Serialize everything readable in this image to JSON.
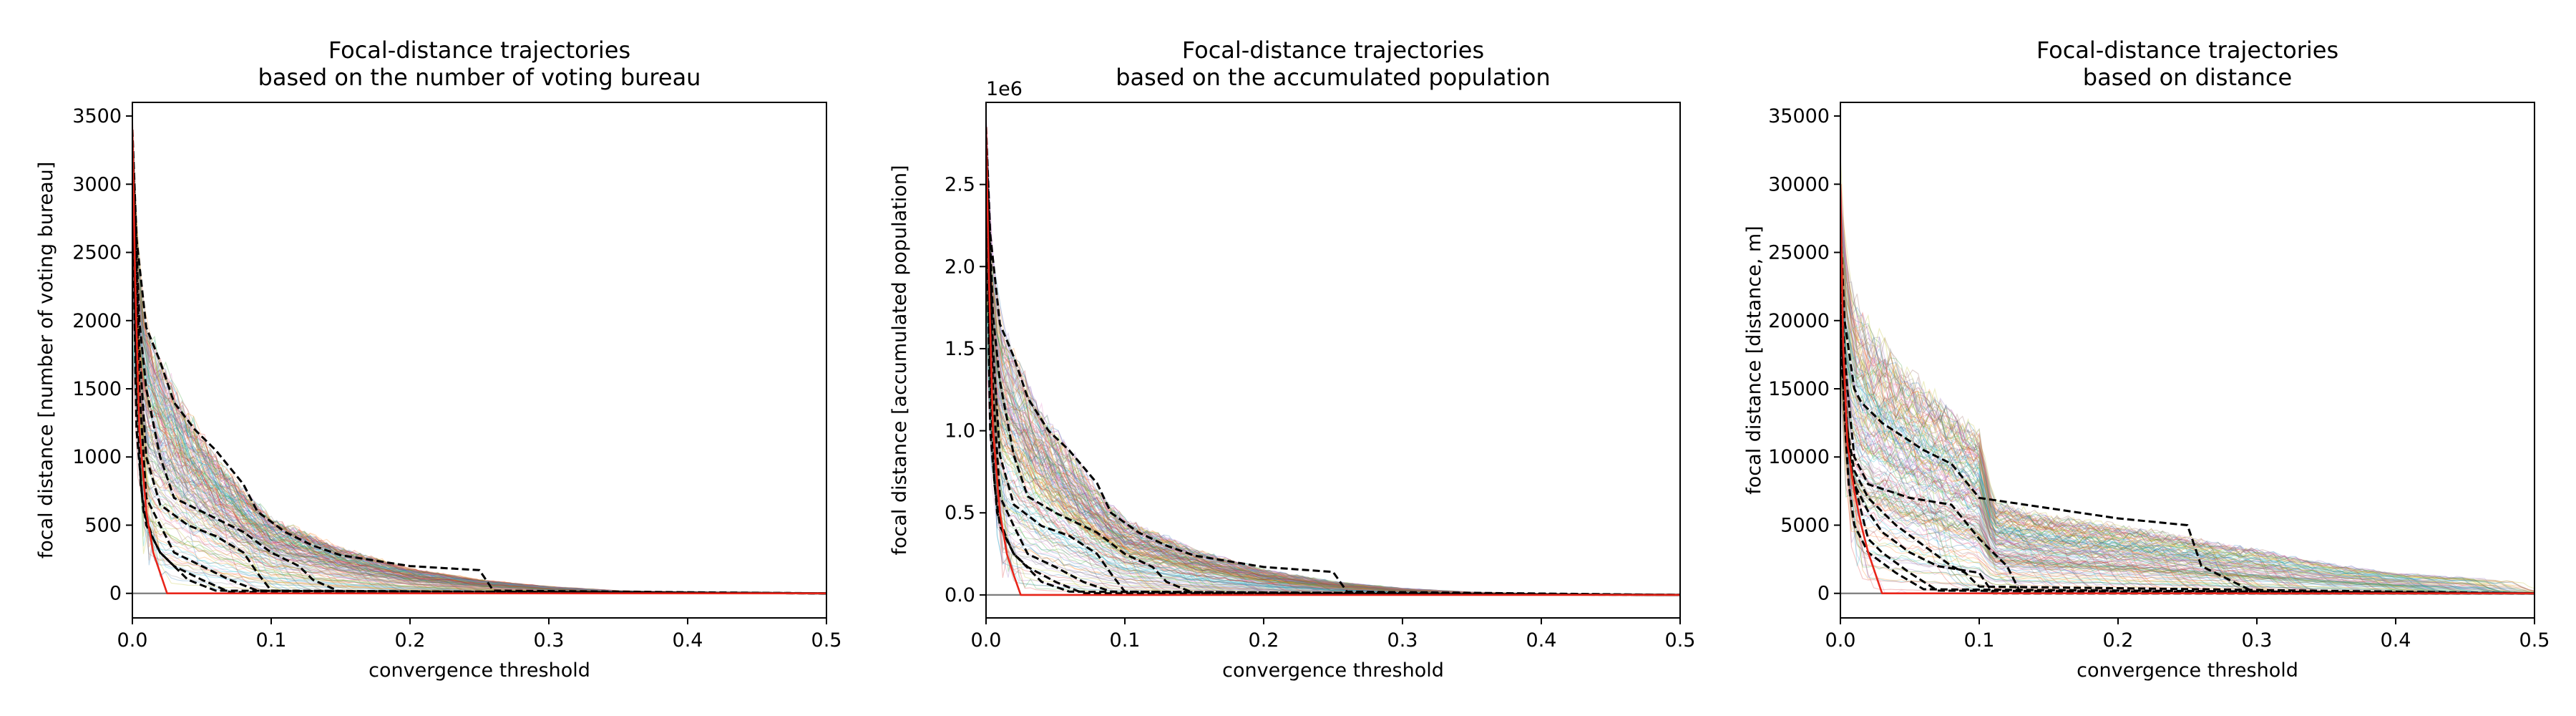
{
  "chart_data": [
    {
      "type": "line",
      "title": "Focal-distance trajectories\nbased on the number of voting bureau",
      "xlabel": "convergence threshold",
      "ylabel": "focal distance [number of voting bureau]",
      "xlim": [
        0,
        0.5
      ],
      "ylim": [
        -180,
        3600
      ],
      "xticks": [
        "0.0",
        "0.1",
        "0.2",
        "0.3",
        "0.4",
        "0.5"
      ],
      "yticks": [
        "0",
        "500",
        "1000",
        "1500",
        "2000",
        "2500",
        "3000",
        "3500"
      ],
      "offset_label": "",
      "grid": false,
      "background_trajectories": "many thin multicolored trajectories",
      "envelope_x": [
        0,
        0.005,
        0.01,
        0.02,
        0.04,
        0.06,
        0.08,
        0.1,
        0.15,
        0.2,
        0.25,
        0.3,
        0.35,
        0.4,
        0.5
      ],
      "envelope_y": [
        3400,
        2300,
        1950,
        1700,
        1300,
        1000,
        750,
        550,
        330,
        180,
        100,
        50,
        20,
        10,
        0
      ],
      "series": [
        {
          "style": "dashed",
          "color": "#000000",
          "x": [
            0,
            0.003,
            0.01,
            0.02,
            0.03,
            0.045,
            0.06,
            0.08,
            0.09,
            0.11,
            0.13,
            0.15,
            0.2,
            0.25,
            0.26,
            0.5
          ],
          "y": [
            3400,
            2600,
            1950,
            1700,
            1400,
            1200,
            1050,
            800,
            600,
            450,
            350,
            280,
            200,
            170,
            20,
            0
          ]
        },
        {
          "style": "dashed",
          "color": "#000000",
          "x": [
            0,
            0.005,
            0.01,
            0.02,
            0.03,
            0.05,
            0.07,
            0.08,
            0.1,
            0.12,
            0.13,
            0.15,
            0.5
          ],
          "y": [
            3300,
            2000,
            1500,
            1000,
            700,
            600,
            500,
            450,
            300,
            200,
            100,
            10,
            0
          ]
        },
        {
          "style": "dashed",
          "color": "#000000",
          "x": [
            0,
            0.005,
            0.01,
            0.02,
            0.04,
            0.06,
            0.08,
            0.09,
            0.1,
            0.5
          ],
          "y": [
            3200,
            1800,
            1000,
            650,
            500,
            420,
            300,
            150,
            20,
            0
          ]
        },
        {
          "style": "dashed",
          "color": "#000000",
          "x": [
            0,
            0.005,
            0.01,
            0.02,
            0.03,
            0.05,
            0.07,
            0.09,
            0.5
          ],
          "y": [
            3100,
            1500,
            700,
            500,
            300,
            200,
            100,
            20,
            0
          ]
        },
        {
          "style": "dashed",
          "color": "#000000",
          "x": [
            0,
            0.003,
            0.008,
            0.015,
            0.02,
            0.03,
            0.05,
            0.07,
            0.5
          ],
          "y": [
            3000,
            1200,
            600,
            400,
            300,
            200,
            100,
            10,
            0
          ]
        },
        {
          "style": "dashed",
          "color": "#000000",
          "x": [
            0,
            0.003,
            0.006,
            0.01,
            0.02,
            0.04,
            0.06,
            0.5
          ],
          "y": [
            3200,
            1600,
            800,
            500,
            300,
            100,
            20,
            0
          ]
        },
        {
          "style": "solid",
          "color": "#e8251a",
          "x": [
            0,
            0.002,
            0.005,
            0.01,
            0.015,
            0.02,
            0.025,
            0.5
          ],
          "y": [
            3400,
            2300,
            1200,
            600,
            300,
            150,
            0,
            0
          ]
        }
      ]
    },
    {
      "type": "line",
      "title": "Focal-distance trajectories\nbased on the accumulated population",
      "xlabel": "convergence threshold",
      "ylabel": "focal distance [accumulated population]",
      "xlim": [
        0,
        0.5
      ],
      "ylim": [
        -0.14,
        3.0
      ],
      "xticks": [
        "0.0",
        "0.1",
        "0.2",
        "0.3",
        "0.4",
        "0.5"
      ],
      "yticks": [
        "0.0",
        "0.5",
        "1.0",
        "1.5",
        "2.0",
        "2.5"
      ],
      "offset_label": "1e6",
      "grid": false,
      "background_trajectories": "many thin multicolored trajectories",
      "envelope_x": [
        0,
        0.005,
        0.01,
        0.02,
        0.04,
        0.06,
        0.08,
        0.1,
        0.15,
        0.2,
        0.25,
        0.3,
        0.35,
        0.4,
        0.5
      ],
      "envelope_y": [
        2.85,
        1.95,
        1.65,
        1.45,
        1.1,
        0.85,
        0.62,
        0.45,
        0.27,
        0.15,
        0.08,
        0.04,
        0.017,
        0.008,
        0
      ],
      "series": [
        {
          "style": "dashed",
          "color": "#000000",
          "x": [
            0,
            0.003,
            0.01,
            0.02,
            0.03,
            0.045,
            0.06,
            0.08,
            0.09,
            0.11,
            0.13,
            0.15,
            0.2,
            0.25,
            0.26,
            0.5
          ],
          "y": [
            2.85,
            2.2,
            1.65,
            1.45,
            1.2,
            1.0,
            0.88,
            0.68,
            0.5,
            0.38,
            0.3,
            0.24,
            0.17,
            0.14,
            0.02,
            0
          ]
        },
        {
          "style": "dashed",
          "color": "#000000",
          "x": [
            0,
            0.005,
            0.01,
            0.02,
            0.03,
            0.05,
            0.07,
            0.08,
            0.1,
            0.12,
            0.13,
            0.15,
            0.5
          ],
          "y": [
            2.8,
            1.7,
            1.3,
            0.85,
            0.6,
            0.5,
            0.42,
            0.38,
            0.25,
            0.17,
            0.08,
            0.01,
            0
          ]
        },
        {
          "style": "dashed",
          "color": "#000000",
          "x": [
            0,
            0.005,
            0.01,
            0.02,
            0.04,
            0.06,
            0.08,
            0.09,
            0.1,
            0.5
          ],
          "y": [
            2.7,
            1.5,
            0.85,
            0.55,
            0.42,
            0.36,
            0.25,
            0.13,
            0.02,
            0
          ]
        },
        {
          "style": "dashed",
          "color": "#000000",
          "x": [
            0,
            0.005,
            0.01,
            0.02,
            0.03,
            0.05,
            0.07,
            0.09,
            0.5
          ],
          "y": [
            2.6,
            1.25,
            0.6,
            0.42,
            0.25,
            0.17,
            0.08,
            0.02,
            0
          ]
        },
        {
          "style": "dashed",
          "color": "#000000",
          "x": [
            0,
            0.003,
            0.008,
            0.015,
            0.02,
            0.03,
            0.05,
            0.07,
            0.5
          ],
          "y": [
            2.55,
            1.0,
            0.5,
            0.34,
            0.25,
            0.17,
            0.08,
            0.01,
            0
          ]
        },
        {
          "style": "dashed",
          "color": "#000000",
          "x": [
            0,
            0.003,
            0.006,
            0.01,
            0.02,
            0.04,
            0.06,
            0.5
          ],
          "y": [
            2.7,
            1.35,
            0.68,
            0.42,
            0.25,
            0.08,
            0.02,
            0
          ]
        },
        {
          "style": "solid",
          "color": "#e8251a",
          "x": [
            0,
            0.002,
            0.005,
            0.01,
            0.015,
            0.02,
            0.025,
            0.5
          ],
          "y": [
            2.85,
            1.95,
            1.0,
            0.5,
            0.25,
            0.12,
            0,
            0
          ]
        }
      ]
    },
    {
      "type": "line",
      "title": "Focal-distance trajectories\nbased on distance",
      "xlabel": "convergence threshold",
      "ylabel": "focal distance [distance, m]",
      "xlim": [
        0,
        0.5
      ],
      "ylim": [
        -1800,
        36000
      ],
      "xticks": [
        "0.0",
        "0.1",
        "0.2",
        "0.3",
        "0.4",
        "0.5"
      ],
      "yticks": [
        "0",
        "5000",
        "10000",
        "15000",
        "20000",
        "25000",
        "30000",
        "35000"
      ],
      "offset_label": "",
      "grid": false,
      "background_trajectories": "many thin multicolored trajectories",
      "envelope_x": [
        0,
        0.005,
        0.01,
        0.02,
        0.05,
        0.08,
        0.1,
        0.11,
        0.15,
        0.2,
        0.25,
        0.3,
        0.35,
        0.4,
        0.5
      ],
      "envelope_y": [
        30000,
        24000,
        21000,
        19000,
        15500,
        13000,
        11500,
        6500,
        5500,
        4800,
        4000,
        3200,
        2200,
        1500,
        800
      ],
      "series": [
        {
          "style": "dashed",
          "color": "#000000",
          "x": [
            0,
            0.003,
            0.01,
            0.015,
            0.03,
            0.06,
            0.08,
            0.1,
            0.2,
            0.25,
            0.26,
            0.3,
            0.5
          ],
          "y": [
            27000,
            20000,
            15000,
            14000,
            12500,
            10500,
            9500,
            7000,
            5500,
            5000,
            2000,
            0,
            0
          ]
        },
        {
          "style": "dashed",
          "color": "#000000",
          "x": [
            0,
            0.005,
            0.01,
            0.02,
            0.05,
            0.08,
            0.1,
            0.12,
            0.13,
            0.5
          ],
          "y": [
            22000,
            15000,
            10000,
            8000,
            7000,
            6500,
            4000,
            2000,
            0,
            0
          ]
        },
        {
          "style": "dashed",
          "color": "#000000",
          "x": [
            0,
            0.005,
            0.01,
            0.02,
            0.04,
            0.06,
            0.08,
            0.09,
            0.1,
            0.5
          ],
          "y": [
            20000,
            12000,
            9000,
            7000,
            5000,
            3500,
            2000,
            1500,
            500,
            0
          ]
        },
        {
          "style": "dashed",
          "color": "#000000",
          "x": [
            0,
            0.005,
            0.01,
            0.02,
            0.03,
            0.05,
            0.07,
            0.1,
            0.11,
            0.5
          ],
          "y": [
            18000,
            11000,
            8000,
            6000,
            4500,
            3000,
            2000,
            1500,
            0,
            0
          ]
        },
        {
          "style": "dashed",
          "color": "#000000",
          "x": [
            0,
            0.003,
            0.008,
            0.015,
            0.02,
            0.03,
            0.05,
            0.07,
            0.5
          ],
          "y": [
            25000,
            14000,
            9000,
            6000,
            4000,
            3000,
            1500,
            200,
            0
          ]
        },
        {
          "style": "dashed",
          "color": "#000000",
          "x": [
            0,
            0.003,
            0.006,
            0.01,
            0.02,
            0.04,
            0.06,
            0.5
          ],
          "y": [
            21000,
            13000,
            8000,
            5000,
            3000,
            1500,
            300,
            0
          ]
        },
        {
          "style": "solid",
          "color": "#e8251a",
          "x": [
            0,
            0.002,
            0.005,
            0.01,
            0.015,
            0.02,
            0.025,
            0.03,
            0.5
          ],
          "y": [
            30000,
            18000,
            11000,
            7500,
            5000,
            3000,
            1500,
            0,
            0
          ]
        }
      ]
    }
  ]
}
